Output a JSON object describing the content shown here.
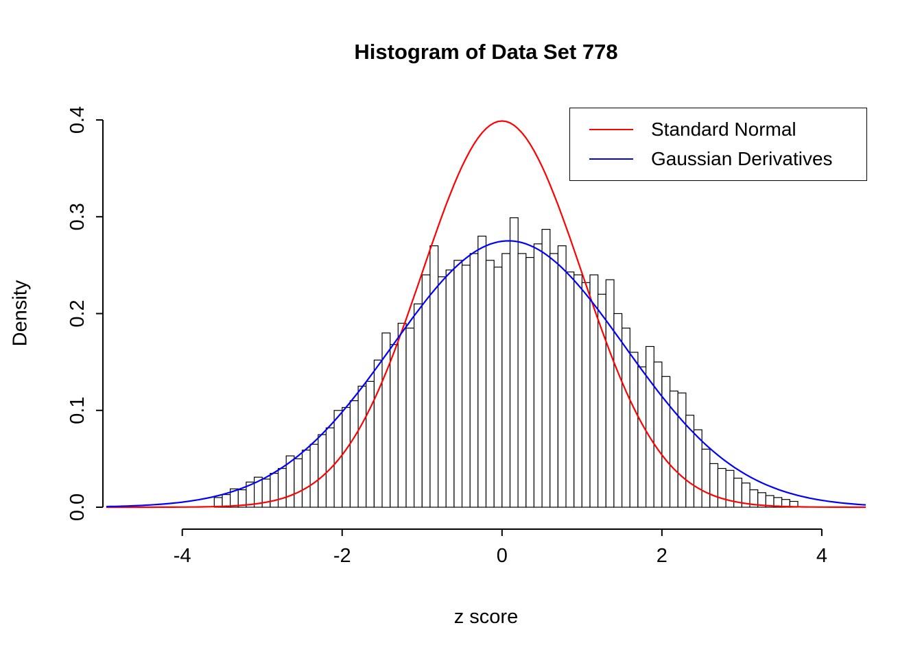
{
  "chart": {
    "title": "Histogram of Data Set 778",
    "xlabel": "z score",
    "ylabel": "Density",
    "legend": {
      "items": [
        {
          "label": "Standard Normal",
          "color": "#ff0000"
        },
        {
          "label": "Gaussian Derivatives",
          "color": "#0000ff"
        }
      ]
    }
  },
  "chart_data": {
    "type": "bar",
    "subtype": "histogram-with-density-curves",
    "title": "Histogram of Data Set 778",
    "xlabel": "z score",
    "ylabel": "Density",
    "xlim": [
      -4.95,
      4.55
    ],
    "ylim": [
      0,
      0.4
    ],
    "grid": false,
    "legend_position": "top-right",
    "x_ticks": [
      {
        "v": -4,
        "label": "-4"
      },
      {
        "v": -2,
        "label": "-2"
      },
      {
        "v": 0,
        "label": "0"
      },
      {
        "v": 2,
        "label": "2"
      },
      {
        "v": 4,
        "label": "4"
      }
    ],
    "y_ticks": [
      {
        "v": 0.0,
        "label": "0.0"
      },
      {
        "v": 0.1,
        "label": "0.1"
      },
      {
        "v": 0.2,
        "label": "0.2"
      },
      {
        "v": 0.3,
        "label": "0.3"
      },
      {
        "v": 0.4,
        "label": "0.4"
      }
    ],
    "histogram": {
      "bin_start": -3.6,
      "bin_width": 0.1,
      "bar_fill": "#ffffff",
      "bar_stroke": "#000000",
      "densities": [
        0.01,
        0.013,
        0.019,
        0.018,
        0.026,
        0.031,
        0.029,
        0.035,
        0.04,
        0.053,
        0.05,
        0.059,
        0.065,
        0.075,
        0.082,
        0.1,
        0.103,
        0.11,
        0.125,
        0.13,
        0.152,
        0.18,
        0.168,
        0.19,
        0.185,
        0.21,
        0.24,
        0.27,
        0.238,
        0.245,
        0.255,
        0.25,
        0.262,
        0.28,
        0.255,
        0.248,
        0.262,
        0.299,
        0.262,
        0.258,
        0.272,
        0.287,
        0.262,
        0.27,
        0.243,
        0.24,
        0.232,
        0.24,
        0.22,
        0.235,
        0.2,
        0.185,
        0.16,
        0.145,
        0.166,
        0.15,
        0.135,
        0.12,
        0.118,
        0.095,
        0.08,
        0.06,
        0.045,
        0.04,
        0.038,
        0.03,
        0.025,
        0.018,
        0.015,
        0.012,
        0.01,
        0.008,
        0.006
      ]
    },
    "curves": [
      {
        "name": "Standard Normal",
        "color": "#ff0000",
        "mean": 0,
        "sd": 1,
        "peak_density": 0.399
      },
      {
        "name": "Gaussian Derivatives",
        "color": "#0000ff",
        "mean": 0.08,
        "sd": 1.45,
        "peak_density": 0.275
      }
    ]
  }
}
